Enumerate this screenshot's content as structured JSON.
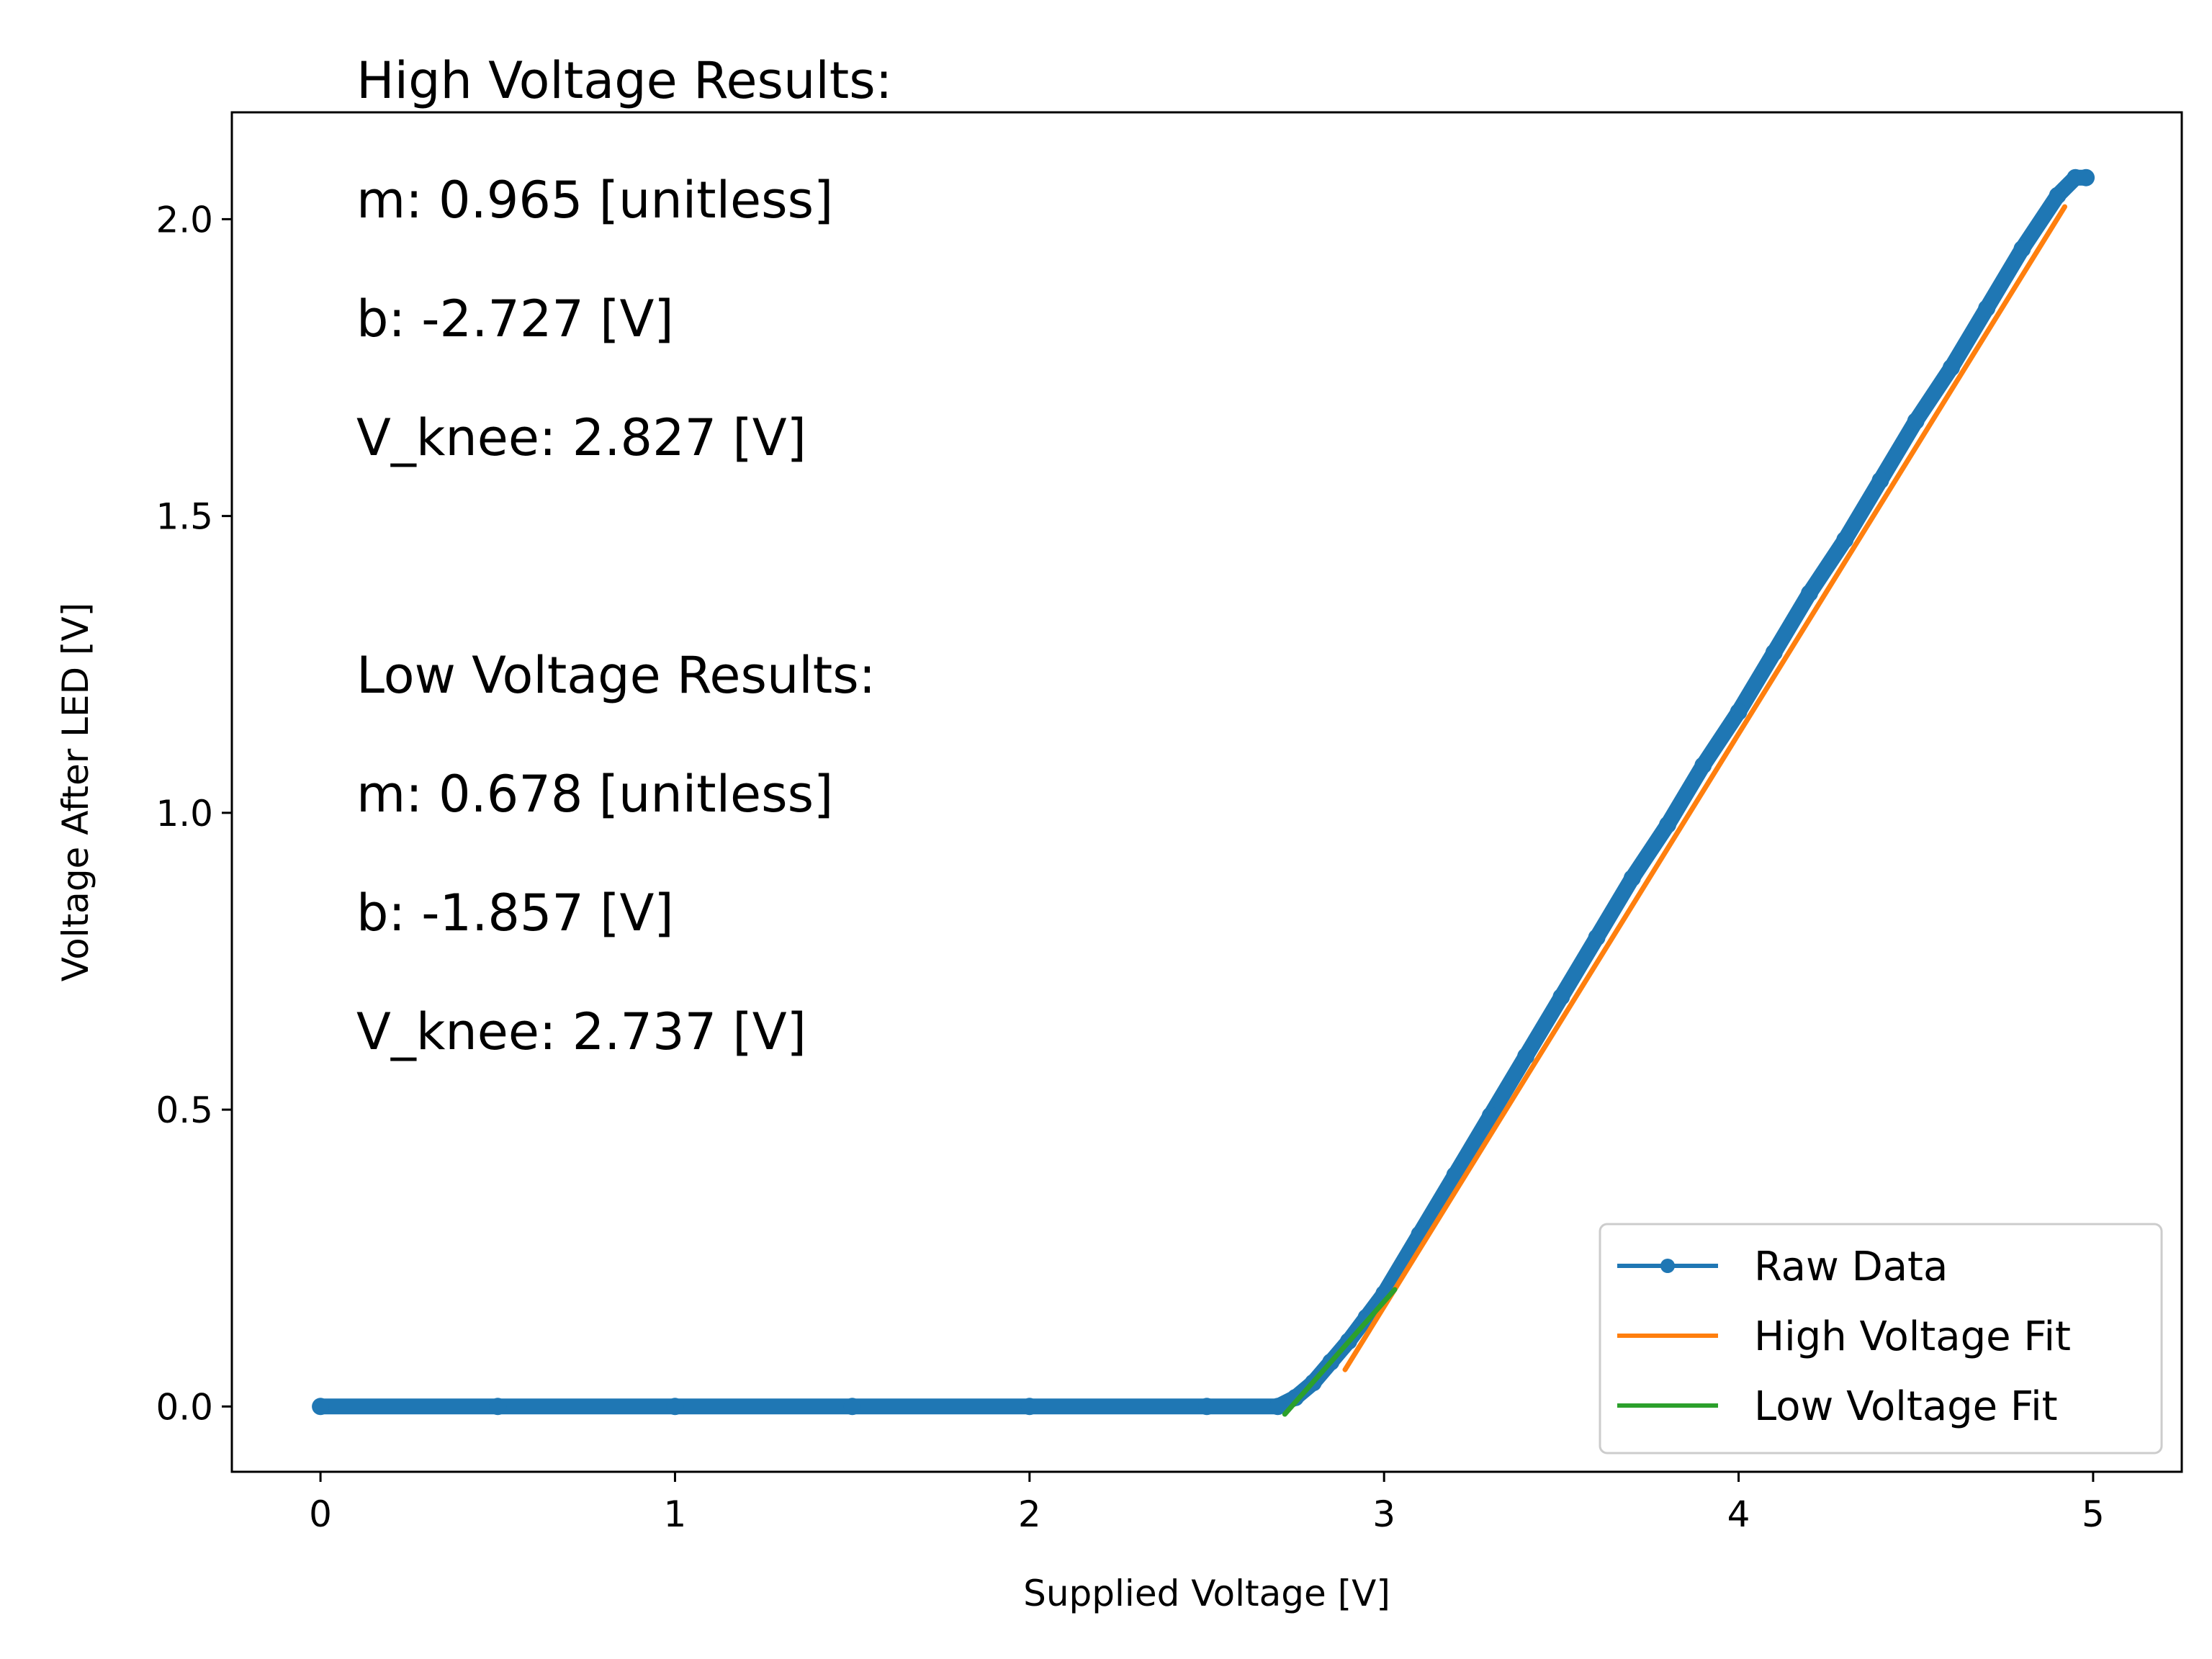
{
  "chart_data": {
    "type": "line",
    "xlabel": "Supplied Voltage [V]",
    "ylabel": "Voltage After LED [V]",
    "xlim": [
      -0.25,
      5.25
    ],
    "ylim": [
      -0.11,
      2.18
    ],
    "xticks": [
      0,
      1,
      2,
      3,
      4,
      5
    ],
    "yticks": [
      0.0,
      0.5,
      1.0,
      1.5,
      2.0
    ],
    "xtick_labels": [
      "0",
      "1",
      "2",
      "3",
      "4",
      "5"
    ],
    "ytick_labels": [
      "0.0",
      "0.5",
      "1.0",
      "1.5",
      "2.0"
    ],
    "grid": false,
    "legend_position": "lower-right",
    "series": [
      {
        "name": "Raw Data",
        "color": "#1f77b4",
        "style": "line-with-markers",
        "x": [
          0,
          0.5,
          1.0,
          1.5,
          2.0,
          2.5,
          2.7,
          2.75,
          2.8,
          2.85,
          2.9,
          2.95,
          3.0,
          3.1,
          3.2,
          3.3,
          3.4,
          3.5,
          3.6,
          3.7,
          3.8,
          3.9,
          4.0,
          4.1,
          4.2,
          4.3,
          4.4,
          4.5,
          4.6,
          4.7,
          4.8,
          4.9,
          4.95,
          4.98
        ],
        "y": [
          0,
          0,
          0,
          0,
          0,
          0,
          0,
          0.015,
          0.04,
          0.075,
          0.11,
          0.15,
          0.19,
          0.29,
          0.39,
          0.49,
          0.59,
          0.69,
          0.79,
          0.89,
          0.98,
          1.08,
          1.17,
          1.27,
          1.37,
          1.46,
          1.56,
          1.66,
          1.75,
          1.85,
          1.95,
          2.04,
          2.07,
          2.07
        ]
      },
      {
        "name": "High Voltage Fit",
        "color": "#ff7f0e",
        "style": "line",
        "x": [
          2.89,
          4.92
        ],
        "y": [
          0.062,
          2.021
        ]
      },
      {
        "name": "Low Voltage Fit",
        "color": "#2ca02c",
        "style": "line",
        "x": [
          2.72,
          3.03
        ],
        "y": [
          -0.013,
          0.197
        ]
      }
    ],
    "annotations": [
      "High Voltage Results:",
      "m: 0.965 [unitless]",
      "b: -2.727 [V]",
      "V_knee: 2.827 [V]",
      "Low Voltage Results:",
      "m: 0.678 [unitless]",
      "b: -1.857 [V]",
      "V_knee: 2.737 [V]"
    ]
  }
}
